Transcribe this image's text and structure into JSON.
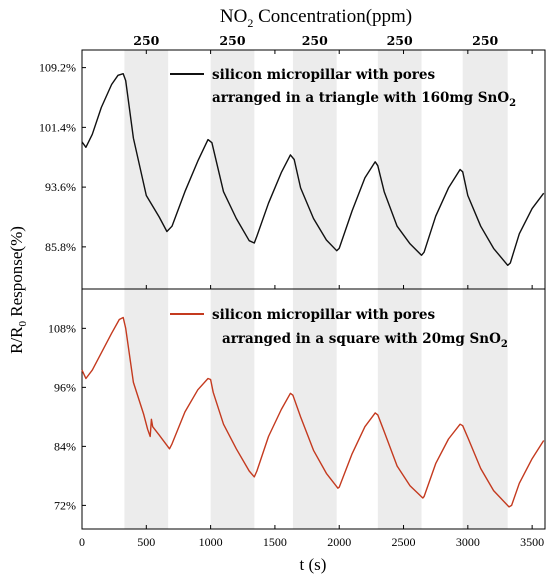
{
  "chart_data": {
    "type": "line",
    "top_title": {
      "main": "NO",
      "sub": "2",
      "rest": " Concentration(ppm)"
    },
    "concentration_labels": [
      "250",
      "250",
      "250",
      "250",
      "250"
    ],
    "gas_on_intervals": [
      [
        330,
        670
      ],
      [
        1000,
        1340
      ],
      [
        1640,
        1980
      ],
      [
        2300,
        2640
      ],
      [
        2960,
        3310
      ]
    ],
    "xlabel": "t (s)",
    "ylabel": {
      "pre": "R/R",
      "sub": "0",
      "post": " Response(%)"
    },
    "xlim": [
      0,
      3600
    ],
    "xticks": [
      "0",
      "500",
      "1000",
      "1500",
      "2000",
      "2500",
      "3000",
      "3500"
    ],
    "grid": false,
    "panels": [
      {
        "name": "top",
        "ylim": [
          80.3,
          111.5
        ],
        "yticks": [
          "109.2%",
          "101.4%",
          "93.6%",
          "85.8%"
        ],
        "ytick_values": [
          109.2,
          101.4,
          93.6,
          85.8
        ],
        "legend": {
          "line1": "silicon micropillar with pores",
          "line2": {
            "pre": "arranged in a triangle with 160mg SnO",
            "sub": "2"
          },
          "color": "#111111",
          "placement": "top-right"
        },
        "series": [
          {
            "color": "#111111",
            "x": [
              0,
              30,
              80,
              150,
              230,
              280,
              320,
              340,
              400,
              500,
              600,
              660,
              700,
              800,
              900,
              980,
              1010,
              1100,
              1200,
              1300,
              1340,
              1360,
              1450,
              1550,
              1620,
              1650,
              1700,
              1800,
              1900,
              1980,
              2000,
              2100,
              2200,
              2280,
              2300,
              2350,
              2450,
              2550,
              2640,
              2660,
              2750,
              2850,
              2940,
              2960,
              3000,
              3100,
              3200,
              3310,
              3330,
              3400,
              3500,
              3590
            ],
            "y": [
              99.5,
              98.8,
              100.5,
              104,
              107,
              108.2,
              108.4,
              107.5,
              100,
              92.5,
              89.7,
              87.8,
              88.5,
              93,
              97,
              99.8,
              99.4,
              93,
              89.5,
              86.6,
              86.3,
              87.2,
              91.5,
              95.5,
              97.8,
              97.2,
              93.5,
              89.5,
              86.7,
              85.3,
              85.6,
              90.5,
              94.8,
              96.9,
              96.4,
              93,
              88.5,
              86.2,
              84.7,
              85.1,
              89.8,
              93.5,
              95.9,
              95.6,
              92.5,
              88.5,
              85.6,
              83.4,
              83.7,
              87.5,
              90.8,
              92.8
            ]
          }
        ]
      },
      {
        "name": "bottom",
        "ylim": [
          67.2,
          116.0
        ],
        "yticks": [
          "108%",
          "96%",
          "84%",
          "72%"
        ],
        "ytick_values": [
          108,
          96,
          84,
          72
        ],
        "legend": {
          "line1": "silicon micropillar with pores",
          "line2": {
            "pre": "arranged in a square with 20mg SnO",
            "sub": "2"
          },
          "color": "#c43a1f",
          "placement": "top-right"
        },
        "series": [
          {
            "color": "#c43a1f",
            "x": [
              0,
              30,
              80,
              150,
              230,
              290,
              320,
              340,
              400,
              480,
              510,
              530,
              540,
              550,
              600,
              680,
              700,
              800,
              900,
              980,
              1000,
              1020,
              1100,
              1200,
              1300,
              1340,
              1360,
              1450,
              1550,
              1620,
              1640,
              1700,
              1800,
              1900,
              1990,
              2000,
              2100,
              2200,
              2280,
              2300,
              2350,
              2450,
              2550,
              2650,
              2660,
              2750,
              2850,
              2940,
              2960,
              3000,
              3100,
              3200,
              3320,
              3340,
              3400,
              3500,
              3590
            ],
            "y": [
              99.5,
              97.8,
              99.5,
              103,
              107,
              109.8,
              110.2,
              108,
              97,
              90.5,
              87.5,
              86,
              89.5,
              88,
              86.3,
              83.5,
              84.5,
              91,
              95.5,
              97.8,
              97.6,
              95,
              88.5,
              83.5,
              79,
              77.8,
              79,
              86,
              91.5,
              94.8,
              94.4,
              90,
              83.2,
              78.5,
              75.5,
              75.7,
              82.5,
              88,
              90.8,
              90.4,
              87,
              80,
              76,
              73.5,
              73.8,
              80.5,
              85.5,
              88.5,
              88.2,
              85.8,
              79.5,
              75,
              71.7,
              72,
              76.5,
              81.5,
              85.2
            ]
          }
        ]
      }
    ]
  }
}
